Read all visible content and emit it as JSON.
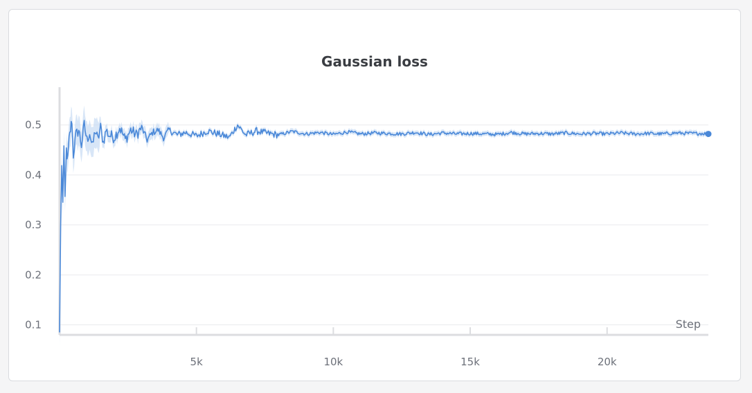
{
  "chart_data": {
    "type": "line",
    "title": "Gaussian loss",
    "xlabel": "Step",
    "ylabel": "",
    "xlim": [
      0,
      23700
    ],
    "ylim": [
      0.08,
      0.57
    ],
    "xticks": [
      5000,
      10000,
      15000,
      20000
    ],
    "xtick_labels": [
      "5k",
      "10k",
      "15k",
      "20k"
    ],
    "yticks": [
      0.1,
      0.2,
      0.3,
      0.4,
      0.5
    ],
    "ytick_labels": [
      "0.1",
      "0.2",
      "0.3",
      "0.4",
      "0.5"
    ],
    "grid": true,
    "legend": "none",
    "colors": {
      "line": "#4a88d8",
      "band": "#c8dcf4",
      "grid": "#e9eaed",
      "axis": "#dcdde0"
    },
    "series": [
      {
        "x": [
          0,
          40,
          80,
          120,
          160,
          200,
          250,
          300,
          350,
          400,
          450,
          500,
          600,
          700,
          800,
          900,
          1000,
          1100,
          1200,
          1300,
          1400,
          1500,
          1600,
          1700,
          1800,
          2000,
          2200,
          2400,
          2600,
          2800,
          3000,
          3200,
          3400,
          3600,
          3800,
          4000,
          4300,
          4600,
          5000,
          5400,
          5800,
          6200,
          6500,
          6800,
          7200,
          7600,
          8000,
          8500,
          9000,
          9500,
          10000,
          10500,
          11000,
          11500,
          12000,
          12500,
          13000,
          13500,
          14000,
          14500,
          15000,
          15500,
          16000,
          16500,
          17000,
          17500,
          18000,
          18500,
          19000,
          19500,
          20000,
          20500,
          21000,
          21500,
          22000,
          22500,
          23000,
          23500,
          23700
        ],
        "values": [
          0.085,
          0.3,
          0.415,
          0.35,
          0.455,
          0.345,
          0.45,
          0.43,
          0.47,
          0.49,
          0.51,
          0.44,
          0.48,
          0.49,
          0.46,
          0.5,
          0.47,
          0.485,
          0.455,
          0.49,
          0.47,
          0.495,
          0.465,
          0.49,
          0.48,
          0.475,
          0.495,
          0.47,
          0.49,
          0.48,
          0.495,
          0.47,
          0.485,
          0.49,
          0.475,
          0.49,
          0.48,
          0.485,
          0.478,
          0.488,
          0.482,
          0.475,
          0.5,
          0.48,
          0.488,
          0.483,
          0.48,
          0.487,
          0.482,
          0.485,
          0.481,
          0.486,
          0.482,
          0.484,
          0.483,
          0.482,
          0.485,
          0.481,
          0.484,
          0.482,
          0.483,
          0.482,
          0.481,
          0.485,
          0.482,
          0.483,
          0.482,
          0.484,
          0.482,
          0.483,
          0.482,
          0.484,
          0.482,
          0.483,
          0.482,
          0.484,
          0.483,
          0.483,
          0.482
        ]
      }
    ]
  }
}
